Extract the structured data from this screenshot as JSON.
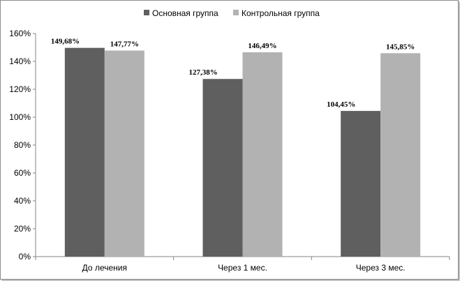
{
  "chart_data": {
    "type": "bar",
    "categories": [
      "До лечения",
      "Через 1 мес.",
      "Через 3 мес."
    ],
    "series": [
      {
        "name": "Основная группа",
        "values": [
          149.68,
          127.38,
          104.45
        ],
        "labels": [
          "149,68%",
          "127,38%",
          "104,45%"
        ],
        "color": "#5f5f5f"
      },
      {
        "name": "Контрольная группа",
        "values": [
          147.77,
          146.49,
          145.85
        ],
        "labels": [
          "147,77%",
          "146,49%",
          "145,85%"
        ],
        "color": "#b2b2b2"
      }
    ],
    "ylim": [
      0,
      160
    ],
    "yticks": [
      "0%",
      "20%",
      "40%",
      "60%",
      "80%",
      "100%",
      "120%",
      "140%",
      "160%"
    ],
    "legend_position": "top",
    "grid": false
  }
}
